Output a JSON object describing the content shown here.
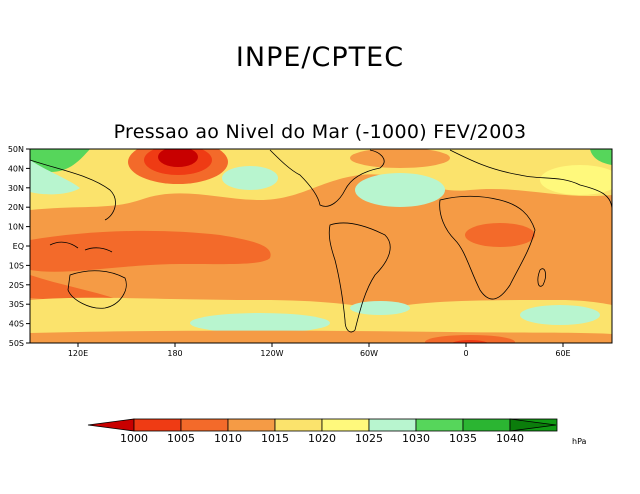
{
  "header": {
    "institution": "INPE/CPTEC",
    "map_title": "Pressao ao Nivel do Mar (-1000) FEV/2003"
  },
  "axes": {
    "lat_labels": [
      "50N",
      "40N",
      "30N",
      "20N",
      "10N",
      "EQ",
      "10S",
      "20S",
      "30S",
      "40S",
      "50S"
    ],
    "lon_labels": [
      "120E",
      "180",
      "120W",
      "60W",
      "0",
      "60E"
    ]
  },
  "legend": {
    "unit": "hPa",
    "ticks": [
      "1000",
      "1005",
      "1010",
      "1015",
      "1020",
      "1025",
      "1030",
      "1035",
      "1040"
    ],
    "colors": [
      "#c80000",
      "#ef3b14",
      "#f36a2a",
      "#f59b45",
      "#fbe36c",
      "#fff97c",
      "#b8f5cf",
      "#56d65b",
      "#2bb532",
      "#119a14",
      "#0b7d0b"
    ]
  }
}
